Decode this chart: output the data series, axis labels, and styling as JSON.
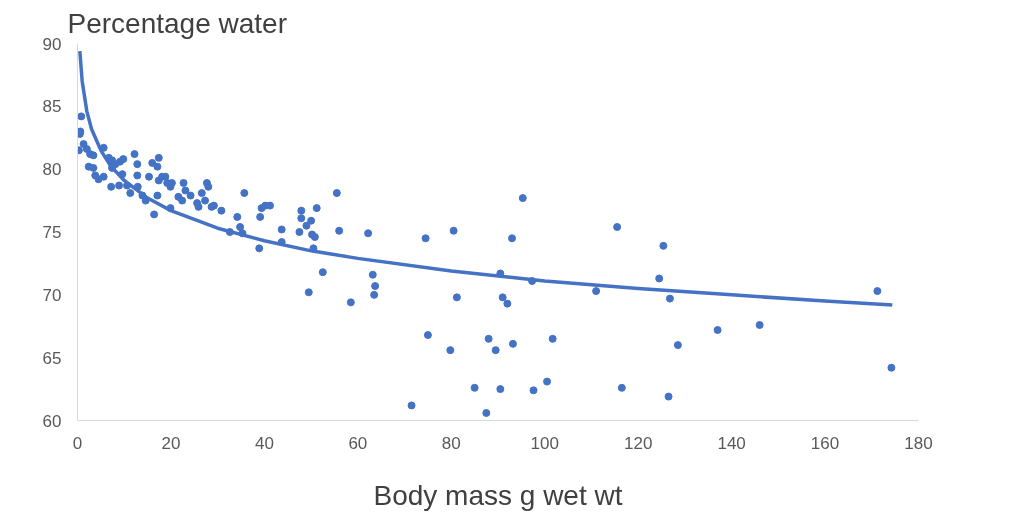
{
  "chart_data": {
    "type": "scatter",
    "title": "Percentage water",
    "xlabel": "Body mass g wet wt",
    "xlim": [
      0,
      180
    ],
    "xticks": [
      0,
      20,
      40,
      60,
      80,
      100,
      120,
      140,
      160,
      180
    ],
    "ylim": [
      60,
      90
    ],
    "yticks": [
      60,
      65,
      70,
      75,
      80,
      85,
      90
    ],
    "grid": false,
    "marker": "circle",
    "series": [
      {
        "color": "#4472c4",
        "x": [
          0.8,
          0.6,
          0.5,
          0.3,
          1.3,
          2.0,
          2.7,
          3.4,
          2.4,
          3.4,
          3.8,
          4.5,
          5.6,
          5.6,
          6.7,
          7.4,
          8.1,
          9.1,
          9.8,
          7.4,
          7.2,
          8.9,
          9.6,
          10.6,
          11.3,
          12.2,
          12.8,
          12.8,
          12.9,
          13.9,
          14.6,
          15.3,
          16.0,
          17.4,
          17.1,
          16.4,
          17.1,
          17.4,
          18.1,
          18.8,
          19.2,
          19.9,
          19.9,
          20.2,
          21.6,
          22.4,
          22.7,
          23.1,
          24.2,
          25.6,
          25.9,
          26.6,
          27.3,
          27.7,
          28.0,
          28.7,
          29.2,
          30.8,
          32.6,
          34.2,
          34.8,
          35.3,
          35.7,
          38.9,
          39.1,
          39.4,
          40.2,
          41.2,
          43.7,
          43.7,
          47.9,
          47.9,
          47.5,
          49,
          49.5,
          50,
          50.2,
          50.5,
          50.8,
          51.2,
          52.5,
          55.5,
          56,
          58.5,
          62.2,
          63.2,
          63.5,
          63.7,
          71.5,
          74.5,
          75,
          79.8,
          80.5,
          81.2,
          85,
          87.5,
          88,
          89.5,
          90.5,
          90.5,
          91,
          92,
          93,
          93.2,
          95.3,
          97.3,
          97.6,
          100.5,
          101.7,
          111,
          115.5,
          116.5,
          124.5,
          125.4,
          126.5,
          126.8,
          128.5,
          137,
          146,
          171.2,
          174.2
        ],
        "values": [
          84.2,
          83.0,
          82.8,
          81.5,
          82.0,
          81.6,
          81.2,
          81.1,
          80.2,
          80.1,
          79.5,
          79.2,
          79.4,
          81.7,
          80.9,
          80.7,
          80.4,
          80.6,
          80.8,
          80.1,
          78.6,
          78.7,
          79.6,
          78.7,
          78.1,
          81.2,
          80.4,
          79.5,
          78.6,
          77.9,
          77.5,
          79.4,
          80.5,
          80.9,
          80.2,
          76.4,
          77.9,
          79.1,
          79.4,
          79.4,
          78.9,
          78.6,
          76.9,
          78.9,
          77.8,
          77.5,
          78.9,
          78.3,
          77.9,
          77.3,
          77.0,
          78.1,
          77.5,
          78.9,
          78.6,
          77.0,
          77.1,
          76.7,
          75.0,
          76.2,
          75.4,
          74.9,
          78.1,
          73.7,
          76.2,
          76.9,
          77.1,
          77.1,
          75.2,
          74.2,
          76.7,
          76.1,
          75.0,
          75.5,
          70.2,
          75.9,
          74.8,
          73.7,
          74.6,
          76.9,
          71.8,
          78.1,
          75.1,
          69.4,
          74.9,
          71.6,
          70.0,
          70.7,
          61.2,
          74.5,
          66.8,
          65.6,
          75.1,
          69.8,
          62.6,
          60.6,
          66.5,
          65.6,
          71.7,
          62.5,
          69.8,
          69.3,
          74.5,
          66.1,
          77.7,
          71.1,
          62.4,
          63.1,
          66.5,
          70.3,
          75.4,
          62.6,
          71.3,
          73.9,
          61.9,
          69.7,
          66.0,
          67.2,
          67.6,
          70.3,
          64.2
        ]
      },
      {
        "type": "line",
        "color": "#4472c4",
        "marker": "none",
        "x": [
          0.5,
          1,
          2,
          3,
          5,
          7,
          10,
          15,
          20,
          30,
          40,
          50,
          60,
          80,
          100,
          120,
          140,
          160,
          174.4
        ],
        "values": [
          89.4,
          87.0,
          84.6,
          83.2,
          81.5,
          80.3,
          79.1,
          77.7,
          76.7,
          75.3,
          74.3,
          73.5,
          72.9,
          71.9,
          71.1,
          70.5,
          70.0,
          69.5,
          69.2
        ]
      }
    ]
  }
}
